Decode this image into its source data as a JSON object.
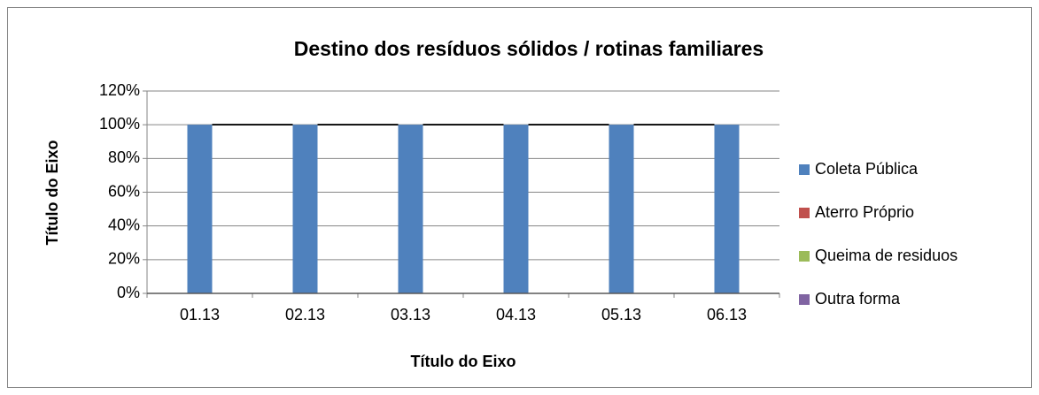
{
  "chart_data": {
    "type": "stacked_bar",
    "title": "Destino dos resíduos sólidos / rotinas familiares",
    "x_label": "Título do Eixo",
    "y_label": "Título do Eixo",
    "categories": [
      "01.13",
      "02.13",
      "03.13",
      "04.13",
      "05.13",
      "06.13"
    ],
    "series": [
      {
        "name": "Coleta Pública",
        "color": "#4f81bd",
        "values": [
          100,
          100,
          100,
          100,
          100,
          100
        ]
      },
      {
        "name": "Aterro Próprio",
        "color": "#c0504d",
        "values": [
          0,
          0,
          0,
          0,
          0,
          0
        ]
      },
      {
        "name": "Queima de residuos",
        "color": "#9bbb59",
        "values": [
          0,
          0,
          0,
          0,
          0,
          0
        ]
      },
      {
        "name": "Outra forma",
        "color": "#8064a2",
        "values": [
          0,
          0,
          0,
          0,
          0,
          0
        ]
      }
    ],
    "ylim": [
      0,
      120
    ],
    "yticks": [
      {
        "value": 0,
        "label": "0%"
      },
      {
        "value": 20,
        "label": "20%"
      },
      {
        "value": 40,
        "label": "40%"
      },
      {
        "value": 60,
        "label": "60%"
      },
      {
        "value": 80,
        "label": "80%"
      },
      {
        "value": 100,
        "label": "100%"
      },
      {
        "value": 120,
        "label": "120%"
      }
    ],
    "grid": true,
    "legend": "right"
  }
}
